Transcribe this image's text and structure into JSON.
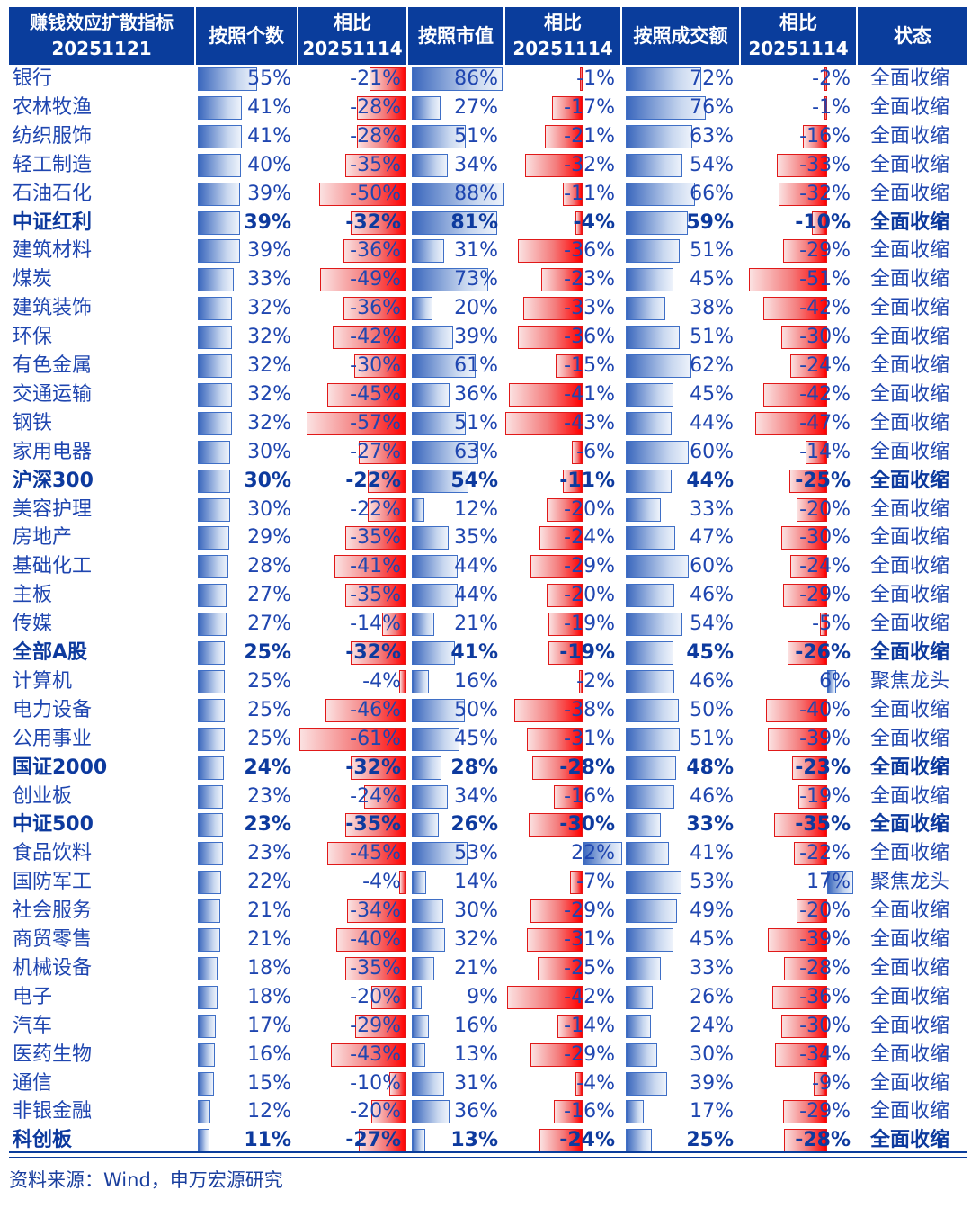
{
  "header": {
    "title_line1": "赚钱效应扩散指标",
    "title_line2": "20251121",
    "col_count": "按照个数",
    "col_cmp": "相比",
    "col_cmp_date": "20251114",
    "col_mktcap": "按照市值",
    "col_turnover": "按照成交额",
    "col_status": "状态"
  },
  "source": "资料来源：Wind，申万宏源研究",
  "colors": {
    "header_bg": "#0a3d9c",
    "positive_bar": "#3a67bd",
    "negative_bar": "#ff0000",
    "text": "#1f46b0"
  },
  "chart_data": {
    "type": "table",
    "columns": [
      "按照个数",
      "相比20251114",
      "按照市值",
      "相比20251114",
      "按照成交额",
      "相比20251114",
      "状态"
    ],
    "rows": [
      {
        "name": "银行",
        "bold": false,
        "count": 55,
        "count_chg": -21,
        "mktcap": 86,
        "mktcap_chg": -1,
        "turnover": 72,
        "turnover_chg": -2,
        "status": "全面收缩"
      },
      {
        "name": "农林牧渔",
        "bold": false,
        "count": 41,
        "count_chg": -28,
        "mktcap": 27,
        "mktcap_chg": -17,
        "turnover": 76,
        "turnover_chg": -1,
        "status": "全面收缩"
      },
      {
        "name": "纺织服饰",
        "bold": false,
        "count": 41,
        "count_chg": -28,
        "mktcap": 51,
        "mktcap_chg": -21,
        "turnover": 63,
        "turnover_chg": -16,
        "status": "全面收缩"
      },
      {
        "name": "轻工制造",
        "bold": false,
        "count": 40,
        "count_chg": -35,
        "mktcap": 34,
        "mktcap_chg": -32,
        "turnover": 54,
        "turnover_chg": -33,
        "status": "全面收缩"
      },
      {
        "name": "石油石化",
        "bold": false,
        "count": 39,
        "count_chg": -50,
        "mktcap": 88,
        "mktcap_chg": -11,
        "turnover": 66,
        "turnover_chg": -32,
        "status": "全面收缩"
      },
      {
        "name": "中证红利",
        "bold": true,
        "count": 39,
        "count_chg": -32,
        "mktcap": 81,
        "mktcap_chg": -4,
        "turnover": 59,
        "turnover_chg": -10,
        "status": "全面收缩"
      },
      {
        "name": "建筑材料",
        "bold": false,
        "count": 39,
        "count_chg": -36,
        "mktcap": 31,
        "mktcap_chg": -36,
        "turnover": 51,
        "turnover_chg": -29,
        "status": "全面收缩"
      },
      {
        "name": "煤炭",
        "bold": false,
        "count": 33,
        "count_chg": -49,
        "mktcap": 73,
        "mktcap_chg": -23,
        "turnover": 45,
        "turnover_chg": -51,
        "status": "全面收缩"
      },
      {
        "name": "建筑装饰",
        "bold": false,
        "count": 32,
        "count_chg": -36,
        "mktcap": 20,
        "mktcap_chg": -33,
        "turnover": 38,
        "turnover_chg": -42,
        "status": "全面收缩"
      },
      {
        "name": "环保",
        "bold": false,
        "count": 32,
        "count_chg": -42,
        "mktcap": 39,
        "mktcap_chg": -36,
        "turnover": 51,
        "turnover_chg": -30,
        "status": "全面收缩"
      },
      {
        "name": "有色金属",
        "bold": false,
        "count": 32,
        "count_chg": -30,
        "mktcap": 61,
        "mktcap_chg": -15,
        "turnover": 62,
        "turnover_chg": -24,
        "status": "全面收缩"
      },
      {
        "name": "交通运输",
        "bold": false,
        "count": 32,
        "count_chg": -45,
        "mktcap": 36,
        "mktcap_chg": -41,
        "turnover": 45,
        "turnover_chg": -42,
        "status": "全面收缩"
      },
      {
        "name": "钢铁",
        "bold": false,
        "count": 32,
        "count_chg": -57,
        "mktcap": 51,
        "mktcap_chg": -43,
        "turnover": 44,
        "turnover_chg": -47,
        "status": "全面收缩"
      },
      {
        "name": "家用电器",
        "bold": false,
        "count": 30,
        "count_chg": -27,
        "mktcap": 63,
        "mktcap_chg": -6,
        "turnover": 60,
        "turnover_chg": -14,
        "status": "全面收缩"
      },
      {
        "name": "沪深300",
        "bold": true,
        "count": 30,
        "count_chg": -22,
        "mktcap": 54,
        "mktcap_chg": -11,
        "turnover": 44,
        "turnover_chg": -25,
        "status": "全面收缩"
      },
      {
        "name": "美容护理",
        "bold": false,
        "count": 30,
        "count_chg": -22,
        "mktcap": 12,
        "mktcap_chg": -20,
        "turnover": 33,
        "turnover_chg": -20,
        "status": "全面收缩"
      },
      {
        "name": "房地产",
        "bold": false,
        "count": 29,
        "count_chg": -35,
        "mktcap": 35,
        "mktcap_chg": -24,
        "turnover": 47,
        "turnover_chg": -30,
        "status": "全面收缩"
      },
      {
        "name": "基础化工",
        "bold": false,
        "count": 28,
        "count_chg": -41,
        "mktcap": 44,
        "mktcap_chg": -29,
        "turnover": 60,
        "turnover_chg": -24,
        "status": "全面收缩"
      },
      {
        "name": "主板",
        "bold": false,
        "count": 27,
        "count_chg": -35,
        "mktcap": 44,
        "mktcap_chg": -20,
        "turnover": 46,
        "turnover_chg": -29,
        "status": "全面收缩"
      },
      {
        "name": "传媒",
        "bold": false,
        "count": 27,
        "count_chg": -14,
        "mktcap": 21,
        "mktcap_chg": -19,
        "turnover": 54,
        "turnover_chg": -5,
        "status": "全面收缩"
      },
      {
        "name": "全部A股",
        "bold": true,
        "count": 25,
        "count_chg": -32,
        "mktcap": 41,
        "mktcap_chg": -19,
        "turnover": 45,
        "turnover_chg": -26,
        "status": "全面收缩"
      },
      {
        "name": "计算机",
        "bold": false,
        "count": 25,
        "count_chg": -4,
        "mktcap": 16,
        "mktcap_chg": -2,
        "turnover": 46,
        "turnover_chg": 6,
        "status": "聚焦龙头"
      },
      {
        "name": "电力设备",
        "bold": false,
        "count": 25,
        "count_chg": -46,
        "mktcap": 50,
        "mktcap_chg": -38,
        "turnover": 50,
        "turnover_chg": -40,
        "status": "全面收缩"
      },
      {
        "name": "公用事业",
        "bold": false,
        "count": 25,
        "count_chg": -61,
        "mktcap": 45,
        "mktcap_chg": -31,
        "turnover": 51,
        "turnover_chg": -39,
        "status": "全面收缩"
      },
      {
        "name": "国证2000",
        "bold": true,
        "count": 24,
        "count_chg": -32,
        "mktcap": 28,
        "mktcap_chg": -28,
        "turnover": 48,
        "turnover_chg": -23,
        "status": "全面收缩"
      },
      {
        "name": "创业板",
        "bold": false,
        "count": 23,
        "count_chg": -24,
        "mktcap": 34,
        "mktcap_chg": -16,
        "turnover": 46,
        "turnover_chg": -19,
        "status": "全面收缩"
      },
      {
        "name": "中证500",
        "bold": true,
        "count": 23,
        "count_chg": -35,
        "mktcap": 26,
        "mktcap_chg": -30,
        "turnover": 33,
        "turnover_chg": -35,
        "status": "全面收缩"
      },
      {
        "name": "食品饮料",
        "bold": false,
        "count": 23,
        "count_chg": -45,
        "mktcap": 53,
        "mktcap_chg": 22,
        "turnover": 41,
        "turnover_chg": -22,
        "status": "全面收缩"
      },
      {
        "name": "国防军工",
        "bold": false,
        "count": 22,
        "count_chg": -4,
        "mktcap": 14,
        "mktcap_chg": -7,
        "turnover": 53,
        "turnover_chg": 17,
        "status": "聚焦龙头"
      },
      {
        "name": "社会服务",
        "bold": false,
        "count": 21,
        "count_chg": -34,
        "mktcap": 30,
        "mktcap_chg": -29,
        "turnover": 49,
        "turnover_chg": -20,
        "status": "全面收缩"
      },
      {
        "name": "商贸零售",
        "bold": false,
        "count": 21,
        "count_chg": -40,
        "mktcap": 32,
        "mktcap_chg": -31,
        "turnover": 45,
        "turnover_chg": -39,
        "status": "全面收缩"
      },
      {
        "name": "机械设备",
        "bold": false,
        "count": 18,
        "count_chg": -35,
        "mktcap": 21,
        "mktcap_chg": -25,
        "turnover": 33,
        "turnover_chg": -28,
        "status": "全面收缩"
      },
      {
        "name": "电子",
        "bold": false,
        "count": 18,
        "count_chg": -20,
        "mktcap": 9,
        "mktcap_chg": -42,
        "turnover": 26,
        "turnover_chg": -36,
        "status": "全面收缩"
      },
      {
        "name": "汽车",
        "bold": false,
        "count": 17,
        "count_chg": -29,
        "mktcap": 16,
        "mktcap_chg": -14,
        "turnover": 24,
        "turnover_chg": -30,
        "status": "全面收缩"
      },
      {
        "name": "医药生物",
        "bold": false,
        "count": 16,
        "count_chg": -43,
        "mktcap": 13,
        "mktcap_chg": -29,
        "turnover": 30,
        "turnover_chg": -34,
        "status": "全面收缩"
      },
      {
        "name": "通信",
        "bold": false,
        "count": 15,
        "count_chg": -10,
        "mktcap": 31,
        "mktcap_chg": -4,
        "turnover": 39,
        "turnover_chg": -9,
        "status": "全面收缩"
      },
      {
        "name": "非银金融",
        "bold": false,
        "count": 12,
        "count_chg": -20,
        "mktcap": 36,
        "mktcap_chg": -16,
        "turnover": 17,
        "turnover_chg": -29,
        "status": "全面收缩"
      },
      {
        "name": "科创板",
        "bold": true,
        "count": 11,
        "count_chg": -27,
        "mktcap": 13,
        "mktcap_chg": -24,
        "turnover": 25,
        "turnover_chg": -28,
        "status": "全面收缩"
      }
    ]
  }
}
